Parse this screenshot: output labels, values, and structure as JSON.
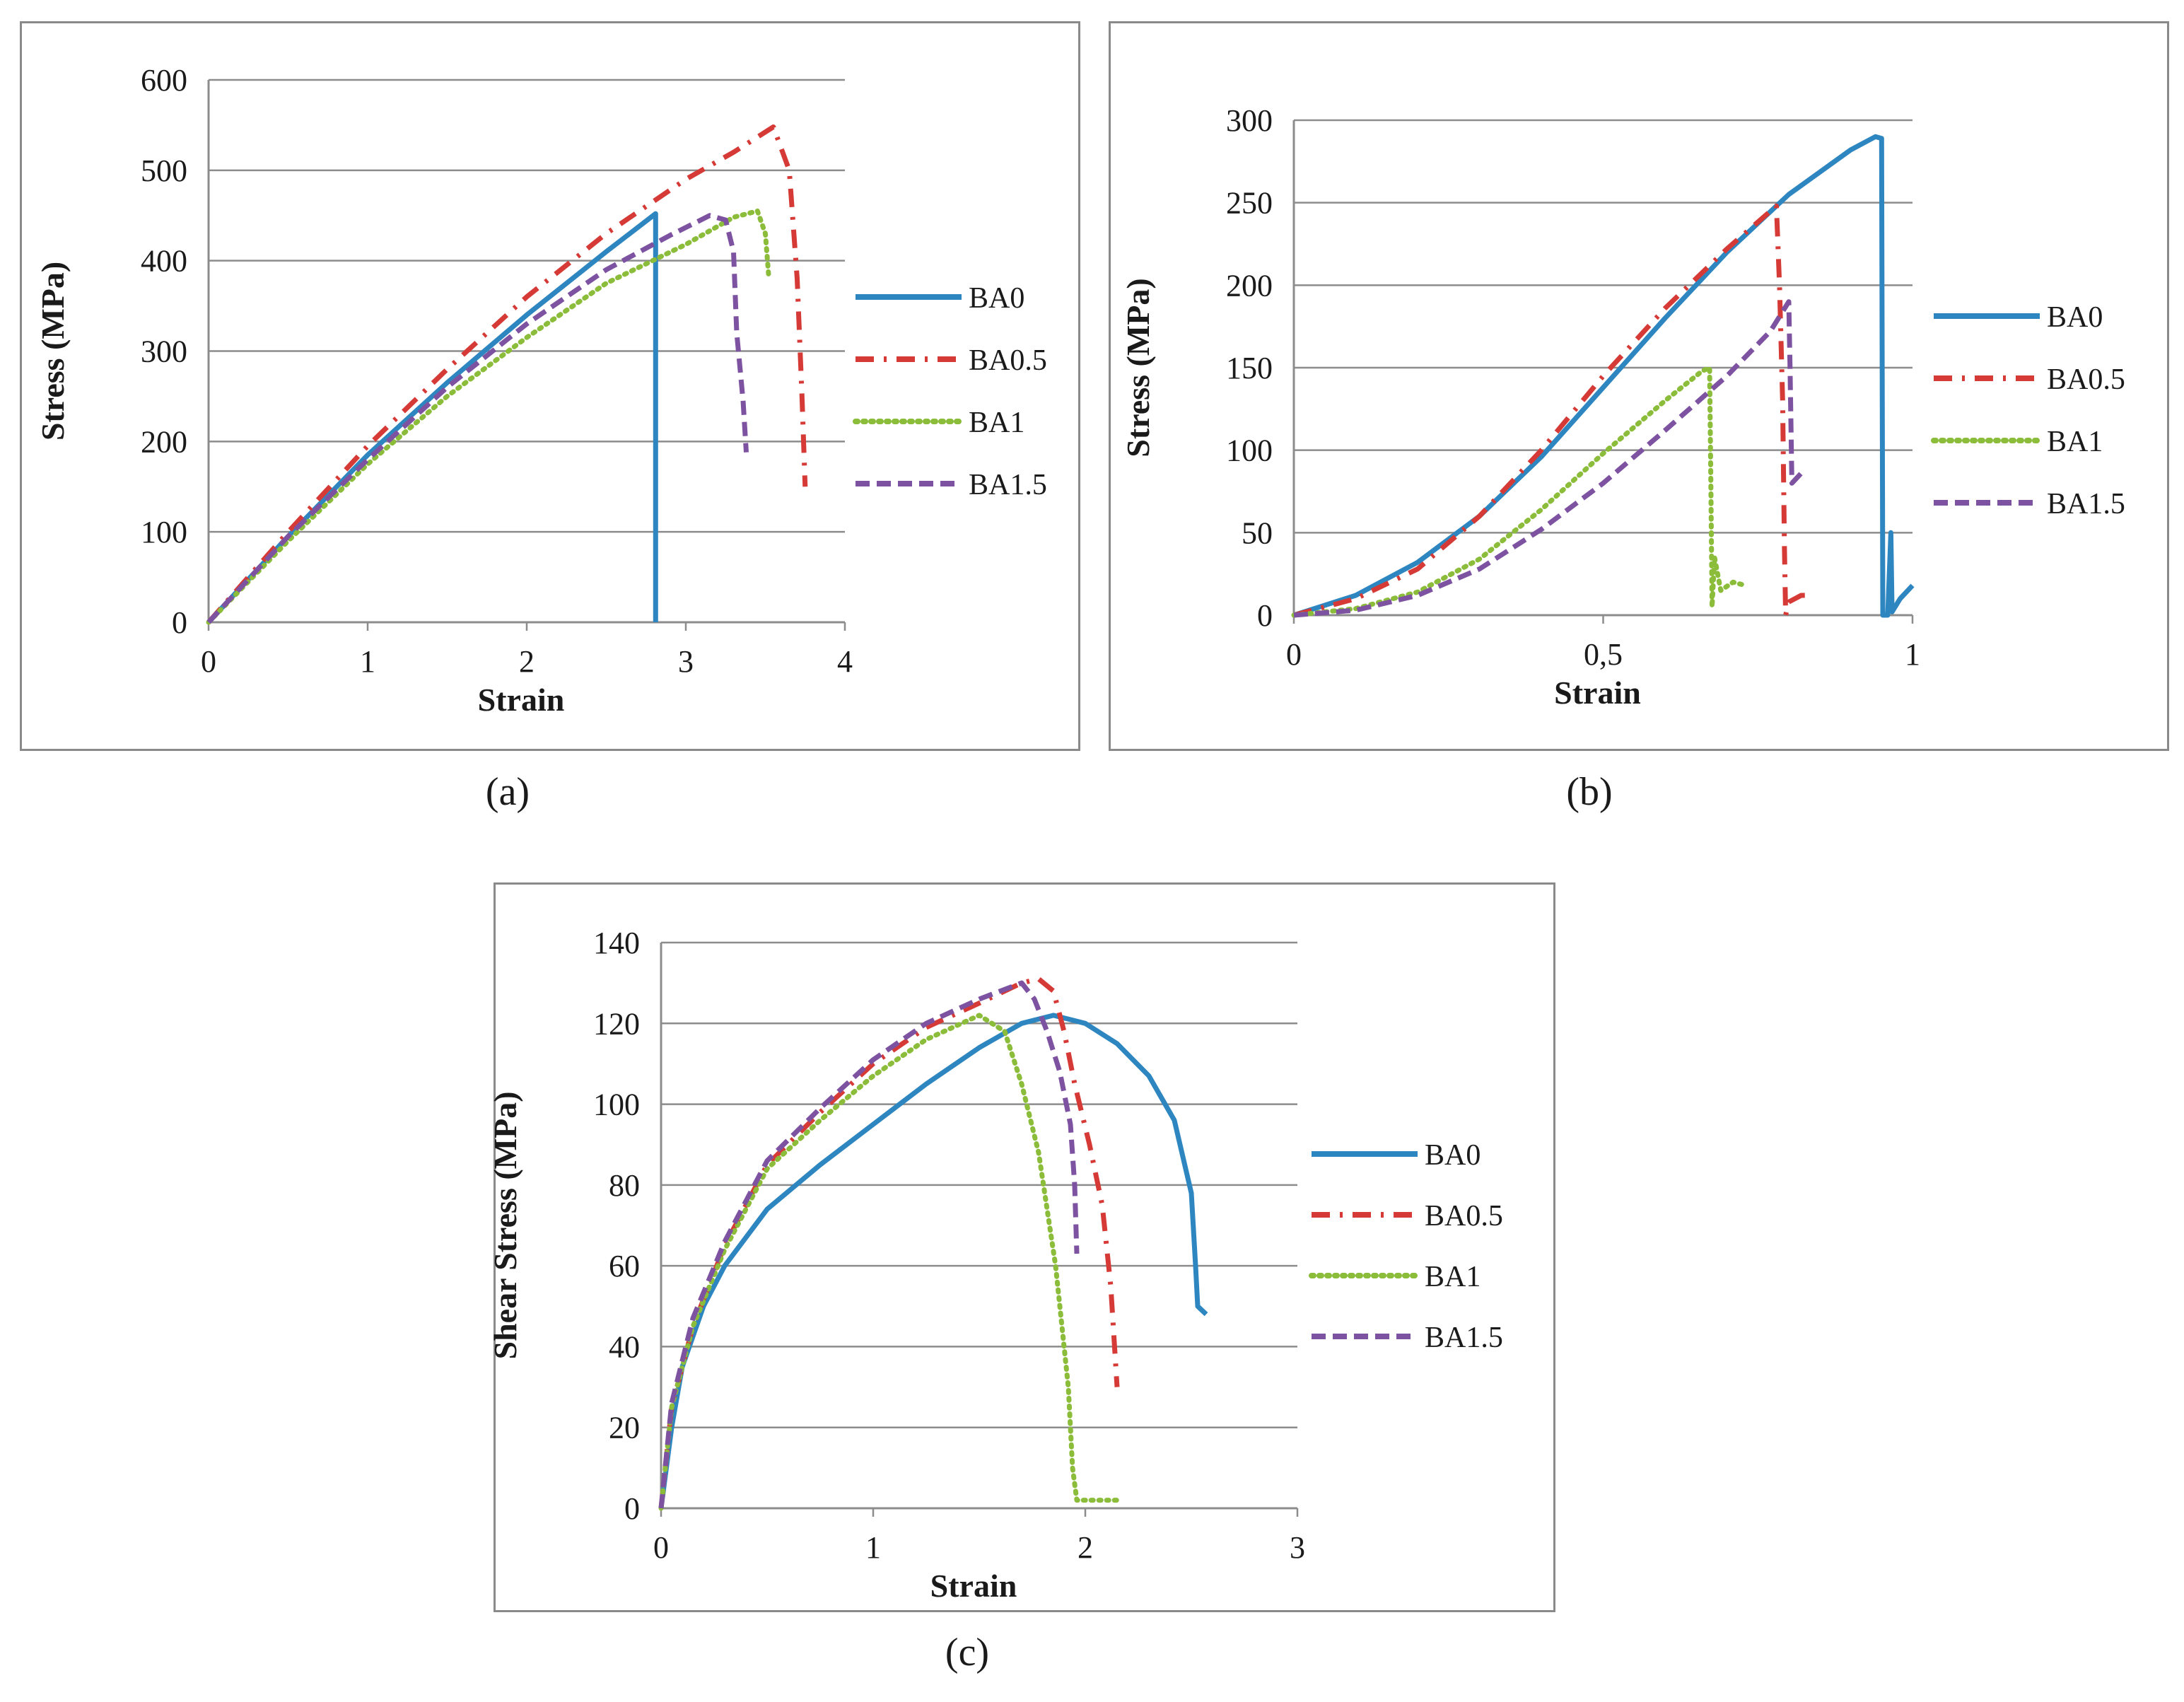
{
  "colors": {
    "BA0": "#2e86c1",
    "BA0.5": "#d63a36",
    "BA1": "#8bbc3a",
    "BA1.5": "#7d52a1",
    "grid": "#8c8c8c",
    "axis": "#8c8c8c",
    "frame": "#8a8a8a"
  },
  "captions": {
    "a": "(a)",
    "b": "(b)",
    "c": "(c)"
  },
  "chart_data": [
    {
      "id": "a",
      "type": "line",
      "xlabel": "Strain",
      "ylabel": "Stress  (MPa)",
      "xlim": [
        0,
        4
      ],
      "ylim": [
        0,
        600
      ],
      "xticks": [
        0,
        1,
        2,
        3,
        4
      ],
      "xtick_labels": [
        "0",
        "1",
        "2",
        "3",
        "4"
      ],
      "yticks": [
        0,
        100,
        200,
        300,
        400,
        500,
        600
      ],
      "ytick_labels": [
        "0",
        "100",
        "200",
        "300",
        "400",
        "500",
        "600"
      ],
      "legend": [
        "BA0",
        "BA0.5",
        "BA1",
        "BA1.5"
      ],
      "series": [
        {
          "name": "BA0",
          "points": [
            [
              0,
              0
            ],
            [
              0.5,
              95
            ],
            [
              1,
              185
            ],
            [
              1.5,
              265
            ],
            [
              2,
              340
            ],
            [
              2.5,
              410
            ],
            [
              2.81,
              452
            ],
            [
              2.81,
              0
            ]
          ]
        },
        {
          "name": "BA0.5",
          "points": [
            [
              0,
              0
            ],
            [
              0.5,
              100
            ],
            [
              1,
              195
            ],
            [
              1.5,
              280
            ],
            [
              2,
              360
            ],
            [
              2.5,
              430
            ],
            [
              3,
              490
            ],
            [
              3.3,
              520
            ],
            [
              3.55,
              548
            ],
            [
              3.65,
              500
            ],
            [
              3.7,
              380
            ],
            [
              3.73,
              250
            ],
            [
              3.75,
              150
            ]
          ]
        },
        {
          "name": "BA1",
          "points": [
            [
              0,
              0
            ],
            [
              0.5,
              90
            ],
            [
              1,
              175
            ],
            [
              1.5,
              250
            ],
            [
              2,
              315
            ],
            [
              2.5,
              375
            ],
            [
              3,
              418
            ],
            [
              3.3,
              448
            ],
            [
              3.45,
              455
            ],
            [
              3.5,
              430
            ],
            [
              3.52,
              385
            ]
          ]
        },
        {
          "name": "BA1.5",
          "points": [
            [
              0,
              0
            ],
            [
              0.5,
              95
            ],
            [
              1,
              180
            ],
            [
              1.5,
              260
            ],
            [
              2,
              330
            ],
            [
              2.5,
              390
            ],
            [
              2.9,
              428
            ],
            [
              3.15,
              450
            ],
            [
              3.25,
              445
            ],
            [
              3.3,
              410
            ],
            [
              3.32,
              320
            ],
            [
              3.36,
              245
            ],
            [
              3.38,
              188
            ]
          ]
        }
      ]
    },
    {
      "id": "b",
      "type": "line",
      "xlabel": "Strain",
      "ylabel": "Stress  (MPa)",
      "xlim": [
        0,
        1
      ],
      "ylim": [
        0,
        300
      ],
      "xticks": [
        0,
        0.5,
        1
      ],
      "xtick_labels": [
        "0",
        "0,5",
        "1"
      ],
      "yticks": [
        0,
        50,
        100,
        150,
        200,
        250,
        300
      ],
      "ytick_labels": [
        "0",
        "50",
        "100",
        "150",
        "200",
        "250",
        "300"
      ],
      "legend": [
        "BA0",
        "BA0.5",
        "BA1",
        "BA1.5"
      ],
      "series": [
        {
          "name": "BA0",
          "points": [
            [
              0,
              0
            ],
            [
              0.1,
              12
            ],
            [
              0.2,
              32
            ],
            [
              0.3,
              60
            ],
            [
              0.4,
              96
            ],
            [
              0.5,
              138
            ],
            [
              0.6,
              180
            ],
            [
              0.7,
              220
            ],
            [
              0.8,
              255
            ],
            [
              0.9,
              282
            ],
            [
              0.94,
              290
            ],
            [
              0.95,
              289
            ],
            [
              0.952,
              0
            ],
            [
              0.96,
              0
            ],
            [
              0.965,
              50
            ],
            [
              0.967,
              2
            ],
            [
              0.98,
              10
            ],
            [
              1,
              18
            ]
          ]
        },
        {
          "name": "BA0.5",
          "points": [
            [
              0,
              0
            ],
            [
              0.1,
              10
            ],
            [
              0.2,
              28
            ],
            [
              0.3,
              60
            ],
            [
              0.4,
              100
            ],
            [
              0.5,
              145
            ],
            [
              0.6,
              186
            ],
            [
              0.7,
              222
            ],
            [
              0.78,
              248
            ],
            [
              0.785,
              200
            ],
            [
              0.79,
              130
            ],
            [
              0.793,
              40
            ],
            [
              0.795,
              0
            ],
            [
              0.8,
              8
            ],
            [
              0.82,
              12
            ],
            [
              0.84,
              12
            ]
          ]
        },
        {
          "name": "BA1",
          "points": [
            [
              0,
              0
            ],
            [
              0.1,
              4
            ],
            [
              0.2,
              14
            ],
            [
              0.3,
              34
            ],
            [
              0.4,
              64
            ],
            [
              0.5,
              98
            ],
            [
              0.6,
              130
            ],
            [
              0.66,
              148
            ],
            [
              0.672,
              150
            ],
            [
              0.674,
              80
            ],
            [
              0.676,
              5
            ],
            [
              0.68,
              35
            ],
            [
              0.69,
              15
            ],
            [
              0.71,
              20
            ],
            [
              0.73,
              18
            ]
          ]
        },
        {
          "name": "BA1.5",
          "points": [
            [
              0,
              0
            ],
            [
              0.1,
              3
            ],
            [
              0.2,
              12
            ],
            [
              0.3,
              28
            ],
            [
              0.4,
              52
            ],
            [
              0.5,
              80
            ],
            [
              0.6,
              112
            ],
            [
              0.7,
              145
            ],
            [
              0.77,
              172
            ],
            [
              0.8,
              190
            ],
            [
              0.802,
              150
            ],
            [
              0.805,
              80
            ],
            [
              0.81,
              82
            ],
            [
              0.82,
              86
            ]
          ]
        }
      ]
    },
    {
      "id": "c",
      "type": "line",
      "xlabel": "Strain",
      "ylabel": "Shear Stress  (MPa)",
      "xlim": [
        0,
        3
      ],
      "ylim": [
        0,
        140
      ],
      "xticks": [
        0,
        1,
        2,
        3
      ],
      "xtick_labels": [
        "0",
        "1",
        "2",
        "3"
      ],
      "yticks": [
        0,
        20,
        40,
        60,
        80,
        100,
        120,
        140
      ],
      "ytick_labels": [
        "0",
        "20",
        "40",
        "60",
        "80",
        "100",
        "120",
        "140"
      ],
      "legend": [
        "BA0",
        "BA0.5",
        "BA1",
        "BA1.5"
      ],
      "series": [
        {
          "name": "BA0",
          "points": [
            [
              0,
              0
            ],
            [
              0.05,
              20
            ],
            [
              0.1,
              35
            ],
            [
              0.2,
              50
            ],
            [
              0.3,
              60
            ],
            [
              0.5,
              74
            ],
            [
              0.75,
              85
            ],
            [
              1,
              95
            ],
            [
              1.25,
              105
            ],
            [
              1.5,
              114
            ],
            [
              1.7,
              120
            ],
            [
              1.85,
              122
            ],
            [
              2,
              120
            ],
            [
              2.15,
              115
            ],
            [
              2.3,
              107
            ],
            [
              2.42,
              96
            ],
            [
              2.5,
              78
            ],
            [
              2.52,
              60
            ],
            [
              2.53,
              50
            ],
            [
              2.57,
              48
            ]
          ]
        },
        {
          "name": "BA0.5",
          "points": [
            [
              0,
              0
            ],
            [
              0.05,
              25
            ],
            [
              0.15,
              45
            ],
            [
              0.3,
              65
            ],
            [
              0.5,
              85
            ],
            [
              0.75,
              98
            ],
            [
              1,
              110
            ],
            [
              1.25,
              119
            ],
            [
              1.5,
              125
            ],
            [
              1.7,
              130
            ],
            [
              1.78,
              131
            ],
            [
              1.85,
              128
            ],
            [
              1.9,
              118
            ],
            [
              1.95,
              105
            ],
            [
              2.02,
              90
            ],
            [
              2.08,
              75
            ],
            [
              2.12,
              55
            ],
            [
              2.15,
              30
            ]
          ]
        },
        {
          "name": "BA1",
          "points": [
            [
              0,
              0
            ],
            [
              0.05,
              25
            ],
            [
              0.15,
              45
            ],
            [
              0.3,
              64
            ],
            [
              0.5,
              84
            ],
            [
              0.75,
              96
            ],
            [
              1,
              107
            ],
            [
              1.25,
              116
            ],
            [
              1.5,
              122
            ],
            [
              1.62,
              118
            ],
            [
              1.7,
              105
            ],
            [
              1.78,
              88
            ],
            [
              1.86,
              60
            ],
            [
              1.92,
              30
            ],
            [
              1.94,
              10
            ],
            [
              1.96,
              2
            ],
            [
              2.05,
              2
            ],
            [
              2.15,
              2
            ]
          ]
        },
        {
          "name": "BA1.5",
          "points": [
            [
              0,
              0
            ],
            [
              0.05,
              26
            ],
            [
              0.15,
              47
            ],
            [
              0.3,
              66
            ],
            [
              0.5,
              86
            ],
            [
              0.75,
              99
            ],
            [
              1,
              111
            ],
            [
              1.25,
              120
            ],
            [
              1.5,
              126
            ],
            [
              1.7,
              130
            ],
            [
              1.76,
              126
            ],
            [
              1.82,
              118
            ],
            [
              1.88,
              108
            ],
            [
              1.93,
              95
            ],
            [
              1.95,
              80
            ],
            [
              1.96,
              63
            ]
          ]
        }
      ]
    }
  ]
}
